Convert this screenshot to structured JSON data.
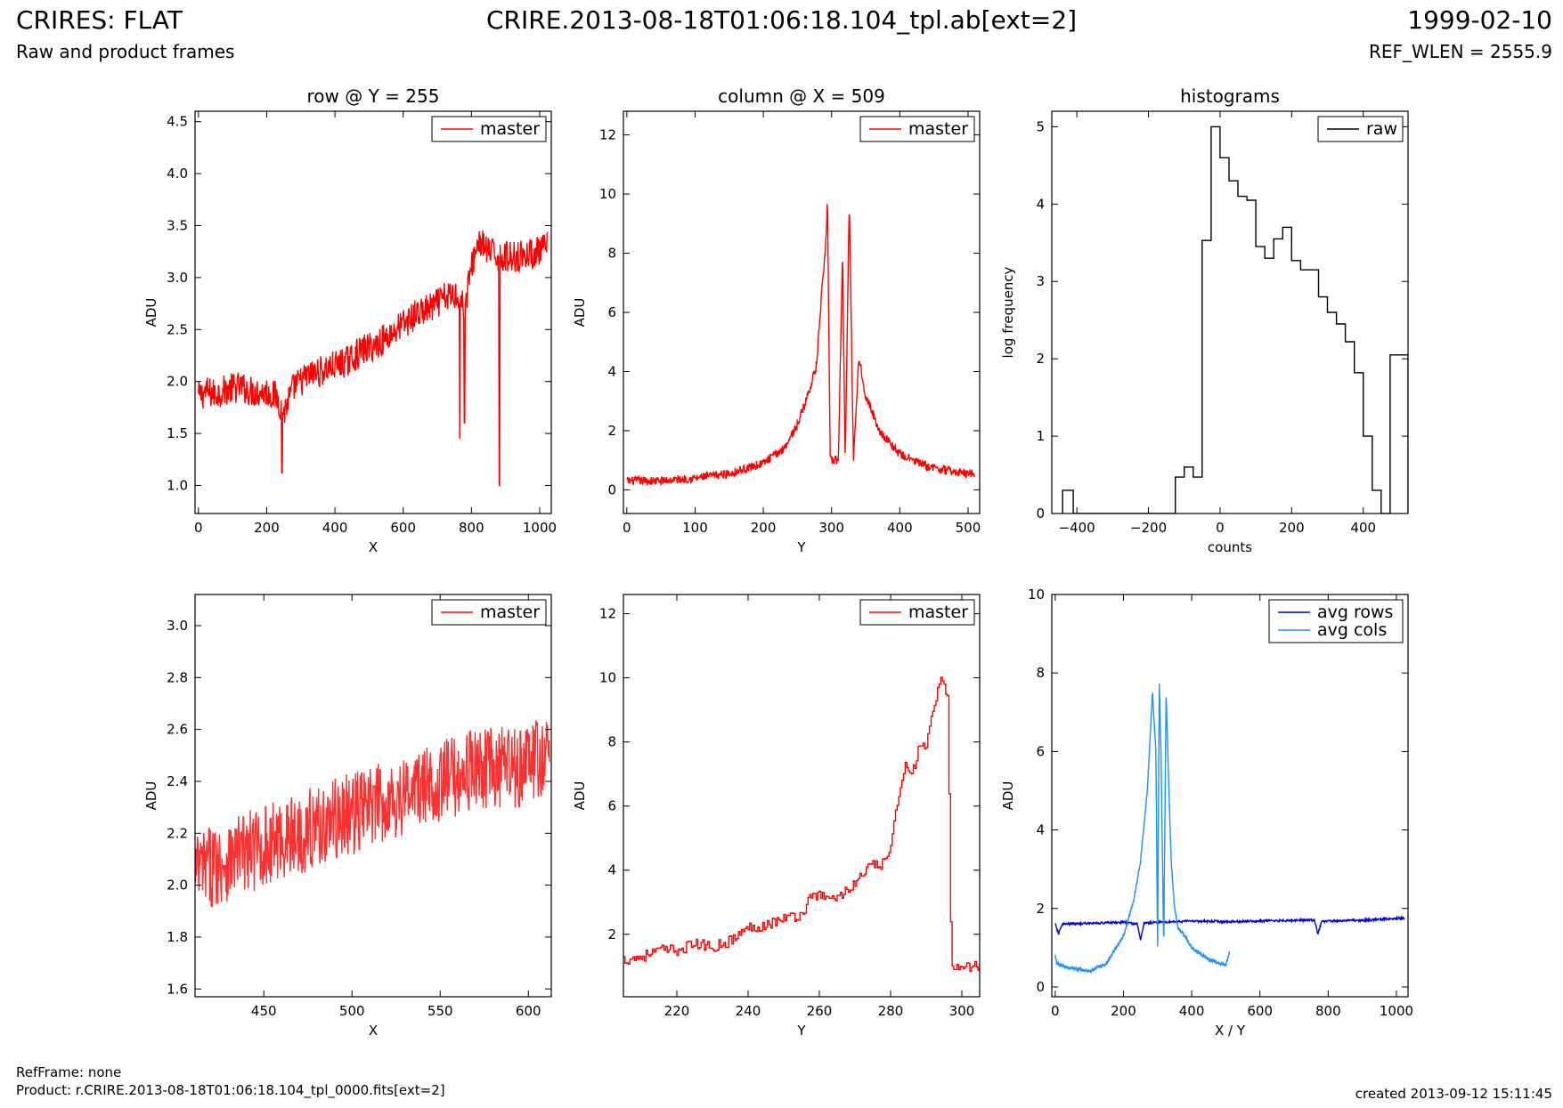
{
  "header": {
    "left_title": "CRIRES: FLAT",
    "left_subtitle": "Raw and product frames",
    "center_title": "CRIRE.2013-08-18T01:06:18.104_tpl.ab[ext=2]",
    "right_date": "1999-02-10",
    "right_ref": "REF_WLEN = 2555.9"
  },
  "footer": {
    "ref_frame": "RefFrame: none",
    "product": "Product: r.CRIRE.2013-08-18T01:06:18.104_tpl_0000.fits[ext=2]",
    "created": "created 2013-09-12 15:11:45"
  },
  "chart_data": [
    {
      "id": "p1",
      "type": "line",
      "title": "row @ Y = 255",
      "xlabel": "X",
      "ylabel": "ADU",
      "xlim": [
        -10,
        1034
      ],
      "ylim": [
        0.73,
        4.6
      ],
      "xticks": [
        0,
        200,
        400,
        600,
        800,
        1000
      ],
      "yticks": [
        1.0,
        1.5,
        2.0,
        2.5,
        3.0,
        3.5,
        4.0,
        4.5
      ],
      "xtick_labels": [
        "0",
        "200",
        "400",
        "600",
        "800",
        "1000"
      ],
      "ytick_labels": [
        "1.0",
        "1.5",
        "2.0",
        "2.5",
        "3.0",
        "3.5",
        "4.0",
        "4.5"
      ],
      "legend": {
        "placement": "top-right",
        "entries": [
          {
            "label": "master",
            "color": "#ff0000"
          }
        ]
      },
      "series": [
        {
          "name": "master",
          "color": "#ff0000",
          "x": [
            0,
            20,
            50,
            80,
            120,
            160,
            200,
            230,
            250,
            280,
            320,
            360,
            400,
            440,
            480,
            520,
            560,
            600,
            640,
            680,
            720,
            760,
            780,
            800,
            820,
            850,
            880,
            920,
            960,
            1000,
            1023
          ],
          "y": [
            1.85,
            1.9,
            1.88,
            1.92,
            1.95,
            1.9,
            1.9,
            1.85,
            1.7,
            1.95,
            2.05,
            2.1,
            2.15,
            2.2,
            2.3,
            2.35,
            2.45,
            2.55,
            2.65,
            2.7,
            2.8,
            2.85,
            2.7,
            3.1,
            3.35,
            3.25,
            3.2,
            3.2,
            3.22,
            3.25,
            3.3
          ],
          "dips": [
            {
              "x": 245,
              "y": 1.12
            },
            {
              "x": 766,
              "y": 1.45
            },
            {
              "x": 780,
              "y": 1.6
            },
            {
              "x": 882,
              "y": 1.0
            }
          ],
          "noise_amplitude": 0.3
        }
      ]
    },
    {
      "id": "p2",
      "type": "line",
      "title": "column @ X = 509",
      "xlabel": "Y",
      "ylabel": "ADU",
      "xlim": [
        -5,
        517
      ],
      "ylim": [
        -0.8,
        12.8
      ],
      "xticks": [
        0,
        100,
        200,
        300,
        400,
        500
      ],
      "yticks": [
        0,
        2,
        4,
        6,
        8,
        10,
        12
      ],
      "xtick_labels": [
        "0",
        "100",
        "200",
        "300",
        "400",
        "500"
      ],
      "ytick_labels": [
        "0",
        "2",
        "4",
        "6",
        "8",
        "10",
        "12"
      ],
      "legend": {
        "placement": "top-right",
        "entries": [
          {
            "label": "master",
            "color": "#ff0000"
          }
        ]
      },
      "series": [
        {
          "name": "master",
          "color": "#ff0000",
          "x": [
            0,
            50,
            100,
            150,
            200,
            230,
            250,
            265,
            278,
            285,
            291,
            294,
            298,
            310,
            316,
            320,
            326,
            332,
            340,
            350,
            370,
            400,
            440,
            480,
            510
          ],
          "y": [
            0.3,
            0.3,
            0.4,
            0.55,
            0.9,
            1.4,
            2.2,
            3.2,
            4.2,
            6.5,
            8.0,
            9.9,
            1.0,
            1.0,
            8.0,
            1.0,
            9.9,
            1.0,
            4.5,
            3.2,
            2.0,
            1.2,
            0.8,
            0.6,
            0.55
          ],
          "noise_amplitude": 0.3
        }
      ]
    },
    {
      "id": "p3",
      "type": "step",
      "title": "histograms",
      "xlabel": "counts",
      "ylabel": "log frequency",
      "xlim": [
        -470,
        525
      ],
      "ylim": [
        0,
        5.2
      ],
      "xticks": [
        -400,
        -200,
        0,
        200,
        400
      ],
      "yticks": [
        0,
        1,
        2,
        3,
        4,
        5
      ],
      "xtick_labels": [
        "−400",
        "−200",
        "0",
        "200",
        "400"
      ],
      "ytick_labels": [
        "0",
        "1",
        "2",
        "3",
        "4",
        "5"
      ],
      "legend": {
        "placement": "top-right",
        "entries": [
          {
            "label": "raw",
            "color": "#000000"
          }
        ]
      },
      "series": [
        {
          "name": "raw",
          "color": "#000000",
          "bin_edges": [
            -440,
            -410,
            -125,
            -100,
            -75,
            -50,
            -25,
            0,
            25,
            50,
            75,
            100,
            125,
            150,
            175,
            200,
            225,
            250,
            275,
            300,
            325,
            350,
            375,
            400,
            425,
            450,
            475,
            495,
            525
          ],
          "counts": [
            0.3,
            0,
            0.47,
            0.6,
            0.47,
            3.53,
            5.0,
            4.6,
            4.3,
            4.1,
            4.05,
            3.45,
            3.3,
            3.55,
            3.7,
            3.27,
            3.15,
            3.15,
            2.8,
            2.6,
            2.45,
            2.22,
            1.82,
            1.0,
            0.3,
            0,
            2.05,
            2.05
          ]
        }
      ]
    },
    {
      "id": "p4",
      "type": "line",
      "xlabel": "X",
      "ylabel": "ADU",
      "xlim": [
        411,
        613
      ],
      "ylim": [
        1.57,
        3.12
      ],
      "xticks": [
        450,
        500,
        550,
        600
      ],
      "yticks": [
        1.6,
        1.8,
        2.0,
        2.2,
        2.4,
        2.6,
        2.8,
        3.0
      ],
      "xtick_labels": [
        "450",
        "500",
        "550",
        "600"
      ],
      "ytick_labels": [
        "1.6",
        "1.8",
        "2.0",
        "2.2",
        "2.4",
        "2.6",
        "2.8",
        "3.0"
      ],
      "legend": {
        "placement": "top-right",
        "entries": [
          {
            "label": "master",
            "color": "#ff0000"
          }
        ]
      },
      "series": [
        {
          "name": "master",
          "color": "#ff3030",
          "x": [
            411,
            430,
            450,
            470,
            490,
            510,
            530,
            550,
            570,
            590,
            612
          ],
          "y": [
            2.05,
            2.1,
            2.15,
            2.2,
            2.25,
            2.3,
            2.35,
            2.4,
            2.45,
            2.45,
            2.5
          ],
          "noise_amplitude": 0.32
        }
      ]
    },
    {
      "id": "p5",
      "type": "step",
      "xlabel": "Y",
      "ylabel": "ADU",
      "xlim": [
        205,
        305
      ],
      "ylim": [
        0.05,
        12.6
      ],
      "xticks": [
        220,
        240,
        260,
        280,
        300
      ],
      "yticks": [
        2,
        4,
        6,
        8,
        10,
        12
      ],
      "xtick_labels": [
        "220",
        "240",
        "260",
        "280",
        "300"
      ],
      "ytick_labels": [
        "2",
        "4",
        "6",
        "8",
        "10",
        "12"
      ],
      "legend": {
        "placement": "top-right",
        "entries": [
          {
            "label": "master",
            "color": "#ff0000"
          }
        ]
      },
      "series": [
        {
          "name": "master",
          "color": "#ff0000",
          "x": [
            205,
            210,
            215,
            220,
            225,
            230,
            235,
            240,
            245,
            250,
            255,
            258,
            262,
            266,
            270,
            274,
            278,
            280,
            282,
            284,
            286,
            288,
            290,
            292,
            294,
            296,
            297,
            305
          ],
          "y": [
            1.2,
            1.3,
            1.5,
            1.5,
            1.7,
            1.6,
            1.8,
            2.2,
            2.3,
            2.5,
            2.6,
            3.3,
            3.1,
            3.2,
            3.6,
            4.1,
            4.2,
            4.7,
            6.2,
            7.4,
            7.0,
            7.8,
            7.9,
            9.0,
            9.9,
            9.4,
            1.0,
            1.0
          ],
          "noise_amplitude": 0.35
        }
      ]
    },
    {
      "id": "p6",
      "type": "line",
      "xlabel": "X / Y",
      "ylabel": "ADU",
      "xlim": [
        -10,
        1034
      ],
      "ylim": [
        -0.25,
        10.0
      ],
      "xticks": [
        0,
        200,
        400,
        600,
        800,
        1000
      ],
      "yticks": [
        0,
        2,
        4,
        6,
        8,
        10
      ],
      "xtick_labels": [
        "0",
        "200",
        "400",
        "600",
        "800",
        "1000"
      ],
      "ytick_labels": [
        "0",
        "2",
        "4",
        "6",
        "8",
        "10"
      ],
      "legend": {
        "placement": "top-right",
        "entries": [
          {
            "label": "avg rows",
            "color": "#0000cc"
          },
          {
            "label": "avg cols",
            "color": "#1e90ff"
          }
        ]
      },
      "series": [
        {
          "name": "avg rows",
          "color": "#0000cc",
          "x": [
            0,
            10,
            20,
            100,
            200,
            240,
            250,
            260,
            300,
            400,
            500,
            600,
            700,
            760,
            770,
            780,
            800,
            900,
            1000,
            1023
          ],
          "y": [
            1.6,
            1.35,
            1.6,
            1.62,
            1.65,
            1.6,
            1.2,
            1.62,
            1.65,
            1.68,
            1.66,
            1.68,
            1.7,
            1.7,
            1.35,
            1.65,
            1.68,
            1.7,
            1.75,
            1.75
          ],
          "noise_amplitude": 0.06
        },
        {
          "name": "avg cols",
          "color": "#1e90ff",
          "x": [
            0,
            5,
            30,
            100,
            150,
            200,
            230,
            250,
            270,
            285,
            295,
            300,
            305,
            310,
            318,
            325,
            330,
            335,
            340,
            350,
            360,
            380,
            400,
            450,
            500,
            511
          ],
          "y": [
            0.8,
            0.6,
            0.5,
            0.4,
            0.6,
            1.3,
            2.2,
            3.2,
            5.0,
            7.5,
            6.0,
            1.0,
            7.8,
            6.0,
            1.0,
            7.5,
            6.0,
            4.5,
            3.2,
            2.0,
            1.5,
            1.3,
            1.0,
            0.7,
            0.55,
            0.9
          ],
          "noise_amplitude": 0.08
        }
      ]
    }
  ]
}
